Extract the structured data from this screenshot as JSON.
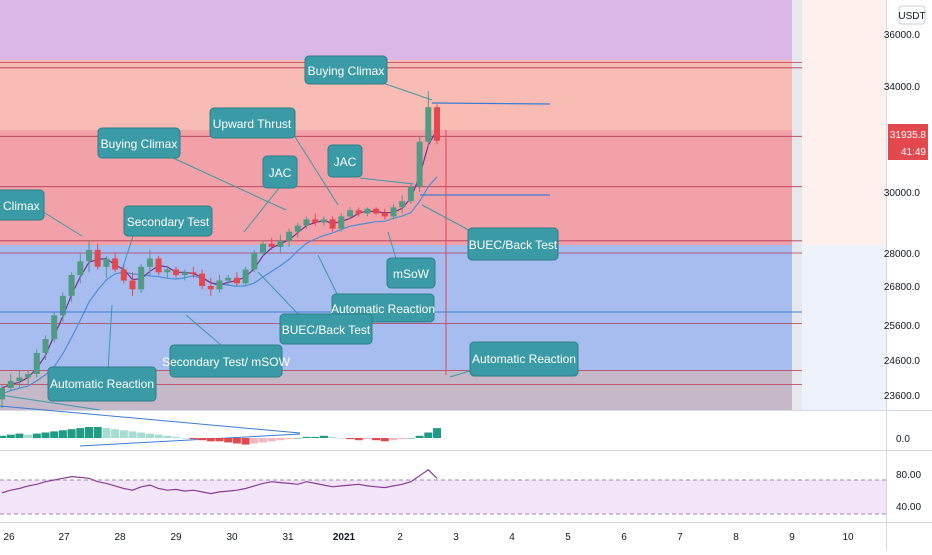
{
  "price_axis": {
    "currency": "USDT",
    "ticks": [
      "36000.0",
      "34000.0",
      "30000.0",
      "28000.0",
      "26800.0",
      "25600.0",
      "24600.0",
      "23600.0"
    ],
    "last_price": "31935.8",
    "countdown": "41:49"
  },
  "oscillator_axis": {
    "ticks": [
      "0.0"
    ]
  },
  "rsi_axis": {
    "ticks": [
      "80.00",
      "40.00"
    ]
  },
  "time_axis": {
    "ticks": [
      "26",
      "27",
      "28",
      "29",
      "30",
      "31",
      "2021",
      "2",
      "3",
      "4",
      "5",
      "6",
      "7",
      "8",
      "9",
      "10"
    ]
  },
  "annotations": [
    "Buying Climax",
    "Upward Thrust",
    "Buying Climax",
    "JAC",
    "JAC",
    "Climax",
    "Secondary Test",
    "BUEC/Back Test",
    "mSoW",
    "Automatic Reaction",
    "BUEC/Back Test",
    "Secondary Test/ mSOW",
    "Automatic Reaction",
    "Automatic Reaction"
  ],
  "colors": {
    "zone_purple": "#dbb7e7",
    "zone_salmon": "#f9bcb5",
    "zone_red": "#f3a1a8",
    "zone_blue": "#a7bdf0",
    "zone_gray": "#c5b8c8",
    "candle_up": "#519a84",
    "candle_down": "#e2484d",
    "callout": "#3a9aa5",
    "rsi_line": "#8a3d97",
    "ma_line": "#4a8fd8"
  },
  "chart_data": {
    "type": "candlestick",
    "symbol_quote": "USDT",
    "candles_ohlc": [
      [
        23500,
        23900,
        23300,
        23800
      ],
      [
        23800,
        24200,
        23700,
        24000
      ],
      [
        24000,
        24300,
        23800,
        24100
      ],
      [
        24100,
        24300,
        23900,
        24200
      ],
      [
        24200,
        24900,
        24100,
        24800
      ],
      [
        24800,
        25300,
        24600,
        25200
      ],
      [
        25200,
        26000,
        25100,
        25900
      ],
      [
        25900,
        26600,
        25700,
        26500
      ],
      [
        26500,
        27300,
        26300,
        27200
      ],
      [
        27200,
        28000,
        26900,
        27700
      ],
      [
        27700,
        28400,
        27300,
        28100
      ],
      [
        28100,
        28300,
        27400,
        27500
      ],
      [
        27500,
        27900,
        27100,
        27800
      ],
      [
        27800,
        28000,
        27300,
        27400
      ],
      [
        27400,
        27600,
        26900,
        27000
      ],
      [
        27000,
        27300,
        26500,
        26700
      ],
      [
        26700,
        27600,
        26600,
        27500
      ],
      [
        27500,
        28100,
        27200,
        27800
      ],
      [
        27800,
        27900,
        27200,
        27300
      ],
      [
        27300,
        27500,
        27100,
        27400
      ],
      [
        27400,
        27500,
        27100,
        27200
      ],
      [
        27200,
        27400,
        27000,
        27300
      ],
      [
        27300,
        27500,
        27100,
        27250
      ],
      [
        27250,
        27400,
        26700,
        26800
      ],
      [
        26800,
        27100,
        26500,
        26700
      ],
      [
        26700,
        27200,
        26600,
        27000
      ],
      [
        27000,
        27200,
        26800,
        27100
      ],
      [
        27100,
        27300,
        26800,
        26900
      ],
      [
        26900,
        27500,
        26800,
        27400
      ],
      [
        27400,
        28100,
        27300,
        28000
      ],
      [
        28000,
        28400,
        27900,
        28300
      ],
      [
        28300,
        28500,
        28100,
        28200
      ],
      [
        28200,
        28600,
        28000,
        28400
      ],
      [
        28400,
        28800,
        28200,
        28700
      ],
      [
        28700,
        29000,
        28500,
        28900
      ],
      [
        28900,
        29200,
        28800,
        29100
      ],
      [
        29100,
        29300,
        28900,
        29000
      ],
      [
        29000,
        29200,
        28900,
        29100
      ],
      [
        29100,
        29200,
        28700,
        28800
      ],
      [
        28800,
        29300,
        28700,
        29200
      ],
      [
        29200,
        29500,
        29100,
        29400
      ],
      [
        29400,
        29500,
        29200,
        29300
      ],
      [
        29300,
        29500,
        29200,
        29450
      ],
      [
        29450,
        29500,
        29250,
        29300
      ],
      [
        29300,
        29450,
        29100,
        29200
      ],
      [
        29200,
        29600,
        29100,
        29500
      ],
      [
        29500,
        29900,
        29300,
        29700
      ],
      [
        29700,
        30300,
        29600,
        30200
      ],
      [
        30200,
        32100,
        30000,
        31900
      ],
      [
        31900,
        33800,
        31700,
        33200
      ],
      [
        33200,
        33300,
        31800,
        31936
      ]
    ],
    "horizontal_levels": [
      34900,
      34700,
      32100,
      30200,
      28400,
      28000,
      25650,
      24300,
      23900
    ],
    "price_range": [
      23300,
      37000
    ],
    "oscillator_values": [
      2,
      3,
      4,
      3,
      4,
      5,
      6,
      7,
      8,
      9,
      10,
      10,
      9,
      8,
      7,
      6,
      5,
      4,
      3,
      2,
      1,
      0,
      -1,
      -2,
      -3,
      -3,
      -4,
      -5,
      -6,
      -5,
      -4,
      -3,
      -2,
      -1,
      0,
      1,
      1,
      2,
      1,
      0,
      -1,
      -2,
      -1,
      -2,
      -3,
      -2,
      -1,
      0,
      2,
      5,
      9
    ],
    "rsi_values": [
      55,
      58,
      60,
      63,
      65,
      68,
      70,
      72,
      74,
      73,
      72,
      68,
      66,
      63,
      60,
      58,
      62,
      64,
      60,
      58,
      59,
      57,
      58,
      56,
      54,
      56,
      57,
      58,
      60,
      63,
      66,
      68,
      67,
      66,
      65,
      68,
      66,
      64,
      62,
      63,
      64,
      65,
      63,
      62,
      61,
      63,
      65,
      68,
      75,
      82,
      72
    ],
    "rsi_levels": [
      70,
      30
    ],
    "time_labels": [
      "26",
      "27",
      "28",
      "29",
      "30",
      "31",
      "2021",
      "2",
      "3",
      "4",
      "5",
      "6",
      "7",
      "8",
      "9",
      "10"
    ]
  }
}
